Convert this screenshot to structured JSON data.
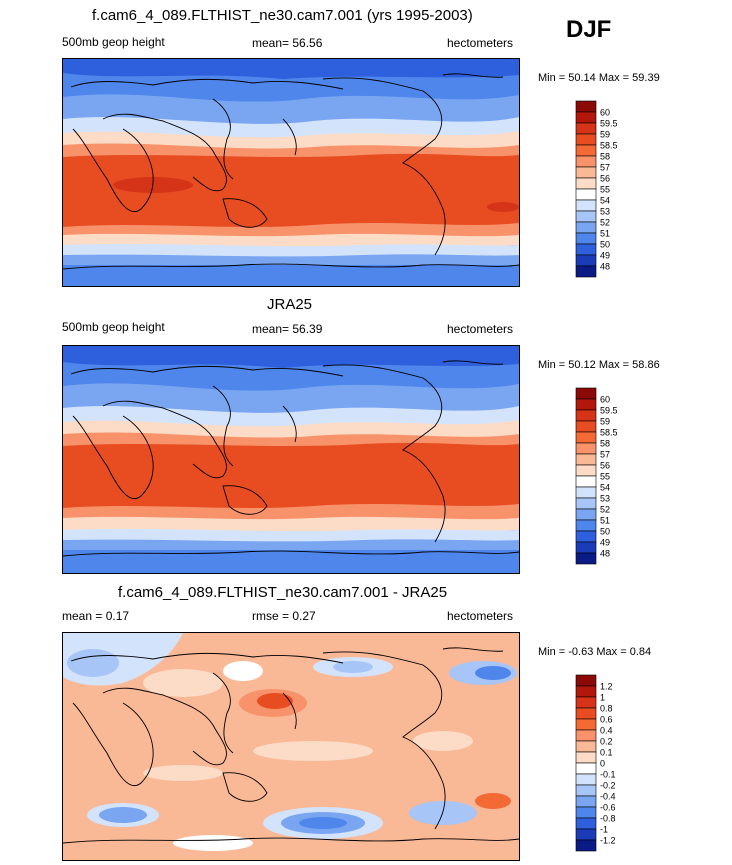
{
  "season": "DJF",
  "colors": {
    "blue_deep": "#1e2a8c",
    "blue_mid": "#3b6ee6",
    "blue_light": "#6d9ef2",
    "ice": "#cfe0fb",
    "white": "#ffffff",
    "peach": "#f9cbb0",
    "orange": "#f46a35",
    "red_orange": "#e8461c",
    "dark_red": "#b0170c",
    "coast": "#000000"
  },
  "panels": [
    {
      "title": "f.cam6_4_089.FLTHIST_ne30.cam7.001 (yrs 1995-2003)",
      "left_label": "500mb geop height",
      "center_label": "mean=  56.56",
      "right_label": "hectometers",
      "minmax": "Min =  50.14 Max =  59.39",
      "colorbar": {
        "labels": [
          "60",
          "59.5",
          "59",
          "58.5",
          "58",
          "57",
          "56",
          "55",
          "54",
          "53",
          "52",
          "51",
          "50",
          "49",
          "48"
        ],
        "colors": [
          "#8b0a07",
          "#b3170b",
          "#d63418",
          "#e84d22",
          "#f46a35",
          "#f7926a",
          "#f9b896",
          "#fcdcc6",
          "#ffffff",
          "#d3e3fb",
          "#a7c5f6",
          "#7aa6f1",
          "#4f86ec",
          "#2e5fdc",
          "#1c3bb8",
          "#0b1b86"
        ]
      }
    },
    {
      "title": "JRA25",
      "left_label": "500mb geop height",
      "center_label": "mean=  56.39",
      "right_label": "hectometers",
      "minmax": "Min =  50.12 Max =  58.86",
      "colorbar": {
        "labels": [
          "60",
          "59.5",
          "59",
          "58.5",
          "58",
          "57",
          "56",
          "55",
          "54",
          "53",
          "52",
          "51",
          "50",
          "49",
          "48"
        ],
        "colors": [
          "#8b0a07",
          "#b3170b",
          "#d63418",
          "#e84d22",
          "#f46a35",
          "#f7926a",
          "#f9b896",
          "#fcdcc6",
          "#ffffff",
          "#d3e3fb",
          "#a7c5f6",
          "#7aa6f1",
          "#4f86ec",
          "#2e5fdc",
          "#1c3bb8",
          "#0b1b86"
        ]
      }
    },
    {
      "title": "f.cam6_4_089.FLTHIST_ne30.cam7.001 - JRA25",
      "left_label": "mean =   0.17",
      "center_label": "rmse =   0.27",
      "right_label": "hectometers",
      "minmax": "Min =  -0.63 Max =   0.84",
      "colorbar": {
        "labels": [
          "1.2",
          "1",
          "0.8",
          "0.6",
          "0.4",
          "0.2",
          "0.1",
          "0",
          "-0.1",
          "-0.2",
          "-0.4",
          "-0.6",
          "-0.8",
          "-1",
          "-1.2"
        ],
        "colors": [
          "#8b0a07",
          "#b3170b",
          "#d63418",
          "#e84d22",
          "#f46a35",
          "#f7926a",
          "#f9b896",
          "#fcdcc6",
          "#ffffff",
          "#d3e3fb",
          "#a7c5f6",
          "#7aa6f1",
          "#4f86ec",
          "#2e5fdc",
          "#1c3bb8",
          "#0b1b86"
        ]
      }
    }
  ]
}
